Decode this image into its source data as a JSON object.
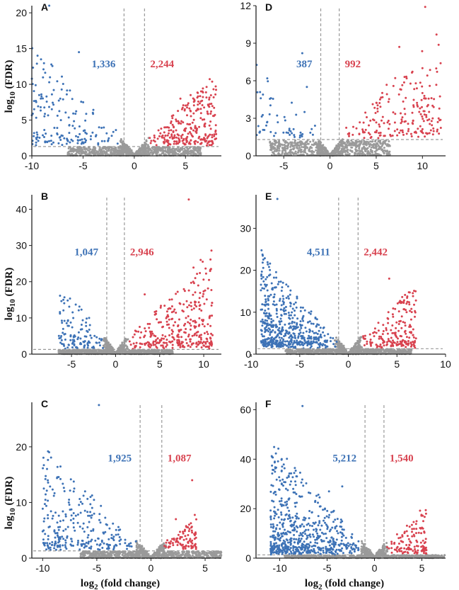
{
  "figure": {
    "ylabel_main": "log",
    "ylabel_sub": "10",
    "ylabel_rest": " (FDR)",
    "xlabel_main": "log",
    "xlabel_sub": "2",
    "xlabel_rest": " (fold change)"
  },
  "colors": {
    "down": "#3d72b6",
    "up": "#d8424f",
    "ns": "#9a9a9a",
    "axis": "#222222",
    "threshold": "#999999"
  },
  "chart_data": [
    {
      "id": "A",
      "type": "scatter",
      "label": "A",
      "down_count": "1,336",
      "up_count": "2,244",
      "xlim": [
        -10,
        8.5
      ],
      "ylim": [
        0,
        21
      ],
      "xticks": [
        -10,
        -5,
        0,
        5
      ],
      "yticks": [
        0,
        5,
        10,
        15,
        20
      ],
      "fc_threshold": 1,
      "fdr_threshold": 1.3,
      "down_extent": [
        -10,
        -1
      ],
      "up_extent": [
        1,
        8
      ],
      "down_n": 160,
      "up_n": 270,
      "seed": 11,
      "outliers_down": [
        [
          -8.3,
          21
        ],
        [
          -7.5,
          3
        ],
        [
          -7,
          2.8
        ],
        [
          -6,
          4.2
        ],
        [
          -5.4,
          14.5
        ]
      ],
      "outliers_up": [
        [
          5.5,
          8.5
        ],
        [
          4.5,
          8.0
        ]
      ]
    },
    {
      "id": "D",
      "type": "scatter",
      "label": "D",
      "down_count": "387",
      "up_count": "992",
      "xlim": [
        -8,
        12.5
      ],
      "ylim": [
        0,
        12
      ],
      "xticks": [
        -5,
        0,
        5,
        10
      ],
      "yticks": [
        0,
        3,
        6,
        9,
        12
      ],
      "fc_threshold": 1,
      "fdr_threshold": 1.3,
      "down_extent": [
        -8,
        -1
      ],
      "up_extent": [
        1,
        12
      ],
      "down_n": 55,
      "up_n": 200,
      "seed": 23,
      "outliers_down": [
        [
          -3,
          8.2
        ],
        [
          -2.5,
          5.5
        ]
      ],
      "outliers_up": [
        [
          10.3,
          11.9
        ],
        [
          7.5,
          8.7
        ],
        [
          10,
          7
        ]
      ]
    },
    {
      "id": "B",
      "type": "scatter",
      "label": "B",
      "down_count": "1,047",
      "up_count": "2,946",
      "xlim": [
        -9.5,
        12
      ],
      "ylim": [
        0,
        44
      ],
      "xticks": [
        -5,
        0,
        5,
        10
      ],
      "yticks": [
        0,
        10,
        20,
        30,
        40
      ],
      "fc_threshold": 1,
      "fdr_threshold": 1.3,
      "down_extent": [
        -6.5,
        -1
      ],
      "up_extent": [
        1,
        11
      ],
      "down_n": 110,
      "up_n": 320,
      "seed": 37,
      "outliers_down": [
        [
          -5.7,
          4
        ],
        [
          -3,
          10
        ]
      ],
      "outliers_up": [
        [
          8.3,
          42.7
        ],
        [
          3.3,
          16.5
        ]
      ]
    },
    {
      "id": "E",
      "type": "scatter",
      "label": "E",
      "down_count": "4,511",
      "up_count": "2,442",
      "xlim": [
        -9.5,
        10
      ],
      "ylim": [
        0,
        38
      ],
      "xticks": [
        -10,
        -5,
        0,
        5,
        10
      ],
      "yticks": [
        0,
        10,
        20,
        30
      ],
      "fc_threshold": 1,
      "fdr_threshold": 1.3,
      "down_extent": [
        -9,
        -1
      ],
      "up_extent": [
        1,
        7
      ],
      "down_n": 520,
      "up_n": 190,
      "seed": 51,
      "outliers_down": [
        [
          -7.3,
          37
        ],
        [
          -8.2,
          9
        ],
        [
          -8.5,
          5.5
        ]
      ],
      "outliers_up": [
        [
          4.2,
          18
        ],
        [
          5.5,
          9
        ]
      ]
    },
    {
      "id": "C",
      "type": "scatter",
      "label": "C",
      "down_count": "1,925",
      "up_count": "1,087",
      "xlim": [
        -11,
        6.5
      ],
      "ylim": [
        0,
        28
      ],
      "xticks": [
        -10,
        -5,
        0,
        5
      ],
      "yticks": [
        0,
        10,
        20
      ],
      "fc_threshold": 1,
      "fdr_threshold": 1.3,
      "down_extent": [
        -10,
        -1
      ],
      "up_extent": [
        1,
        4.2
      ],
      "down_n": 260,
      "up_n": 90,
      "seed": 67,
      "outliers_down": [
        [
          -4.8,
          27.5
        ],
        [
          -10,
          4.8
        ],
        [
          -7.3,
          3
        ]
      ],
      "outliers_up": [
        [
          3.8,
          14
        ],
        [
          2.3,
          7
        ]
      ]
    },
    {
      "id": "F",
      "type": "scatter",
      "label": "F",
      "down_count": "5,212",
      "up_count": "1,540",
      "xlim": [
        -12.5,
        7.5
      ],
      "ylim": [
        0,
        63
      ],
      "xticks": [
        -10,
        -5,
        0,
        5
      ],
      "yticks": [
        0,
        20,
        40,
        60
      ],
      "fc_threshold": 1,
      "fdr_threshold": 1.3,
      "down_extent": [
        -11,
        -1
      ],
      "up_extent": [
        1,
        5.5
      ],
      "down_n": 620,
      "up_n": 120,
      "seed": 83,
      "outliers_down": [
        [
          -7.6,
          61.5
        ],
        [
          -3.4,
          29
        ],
        [
          -4.8,
          27
        ]
      ],
      "outliers_up": [
        [
          3.5,
          9
        ],
        [
          5.2,
          4
        ]
      ]
    }
  ]
}
